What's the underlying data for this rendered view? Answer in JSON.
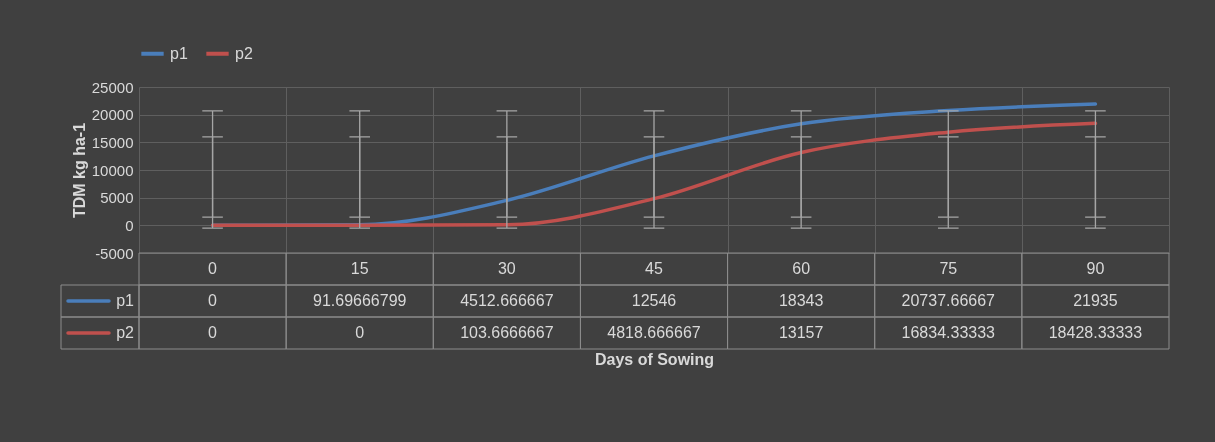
{
  "chart_data": {
    "type": "line",
    "xlabel": "Days of Sowing",
    "ylabel": "TDM kg ha-1",
    "categories": [
      "0",
      "15",
      "30",
      "45",
      "60",
      "75",
      "90"
    ],
    "series": [
      {
        "name": "p1",
        "color": "#4a7ebb",
        "values": [
          0,
          91.69666799,
          4512.666667,
          12546,
          18343,
          20737.66667,
          21935
        ],
        "errors": [
          [
            1500,
            20700
          ],
          [
            1500,
            20700
          ],
          [
            1500,
            20700
          ],
          [
            1500,
            20700
          ],
          [
            1500,
            20700
          ],
          [
            1500,
            20700
          ],
          [
            1500,
            20700
          ]
        ]
      },
      {
        "name": "p2",
        "color": "#c0504d",
        "values": [
          0,
          0,
          103.6666667,
          4818.666667,
          13157,
          16834.33333,
          18428.33333
        ],
        "errors": [
          [
            -500,
            16000
          ],
          [
            -500,
            16000
          ],
          [
            -500,
            16000
          ],
          [
            -500,
            16000
          ],
          [
            -500,
            16000
          ],
          [
            -500,
            16000
          ],
          [
            -500,
            16000
          ]
        ]
      }
    ],
    "ylim": [
      -5000,
      25000
    ],
    "yticks": [
      -5000,
      0,
      5000,
      10000,
      15000,
      20000,
      25000
    ],
    "grid": true,
    "legend": "top",
    "data_labels": true,
    "marker": "none",
    "line_style": "solid"
  }
}
